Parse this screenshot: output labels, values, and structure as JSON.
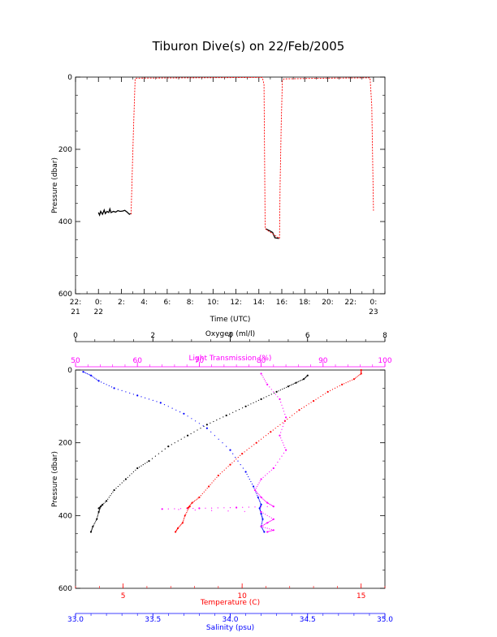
{
  "title": "Tiburon Dive(s) on 22/Feb/2005",
  "colors": {
    "black": "#000000",
    "red": "#ff0000",
    "blue": "#0000ff",
    "magenta": "#ff00ff"
  },
  "chart_data": [
    {
      "type": "line",
      "title": "Tiburon Dive(s) on 22/Feb/2005",
      "xlabel": "Time (UTC)",
      "ylabel": "Pressure (dbar)",
      "x_unit": "hours since 22/Feb 00:00 UTC",
      "xlim": [
        -2,
        25
      ],
      "ylim": [
        600,
        0
      ],
      "x_ticks": [
        {
          "x": -2,
          "label": "22:",
          "sub": "21"
        },
        {
          "x": 0,
          "label": "0:",
          "sub": "22"
        },
        {
          "x": 2,
          "label": "2:",
          "sub": ""
        },
        {
          "x": 4,
          "label": "4:",
          "sub": ""
        },
        {
          "x": 6,
          "label": "6:",
          "sub": ""
        },
        {
          "x": 8,
          "label": "8:",
          "sub": ""
        },
        {
          "x": 10,
          "label": "10:",
          "sub": ""
        },
        {
          "x": 12,
          "label": "12:",
          "sub": ""
        },
        {
          "x": 14,
          "label": "14:",
          "sub": ""
        },
        {
          "x": 16,
          "label": "16:",
          "sub": ""
        },
        {
          "x": 18,
          "label": "18:",
          "sub": ""
        },
        {
          "x": 20,
          "label": "20:",
          "sub": ""
        },
        {
          "x": 22,
          "label": "22:",
          "sub": ""
        },
        {
          "x": 24,
          "label": "0:",
          "sub": "23"
        }
      ],
      "y_ticks": [
        0,
        200,
        400,
        600
      ],
      "series": [
        {
          "color": "#000000",
          "points": [
            [
              0.0,
              375
            ],
            [
              0.1,
              382
            ],
            [
              0.2,
              372
            ],
            [
              0.35,
              380
            ],
            [
              0.5,
              368
            ],
            [
              0.6,
              378
            ],
            [
              0.75,
              372
            ],
            [
              0.9,
              375
            ],
            [
              1.0,
              365
            ],
            [
              1.1,
              375
            ],
            [
              1.3,
              372
            ],
            [
              1.5,
              374
            ],
            [
              1.7,
              370
            ],
            [
              1.9,
              372
            ],
            [
              2.1,
              371
            ],
            [
              2.3,
              369
            ],
            [
              2.5,
              374
            ],
            [
              2.7,
              380
            ],
            [
              2.8,
              378
            ]
          ]
        },
        {
          "color": "#000000",
          "points": [
            [
              14.6,
              420
            ],
            [
              14.9,
              425
            ],
            [
              15.2,
              430
            ],
            [
              15.4,
              445
            ],
            [
              15.6,
              446
            ],
            [
              15.75,
              447
            ]
          ]
        },
        {
          "color": "#ff0000",
          "points": [
            [
              2.85,
              380
            ],
            [
              2.95,
              260
            ],
            [
              3.05,
              150
            ],
            [
              3.2,
              5
            ],
            [
              3.3,
              3
            ],
            [
              8,
              2
            ],
            [
              14.3,
              1
            ],
            [
              14.45,
              20
            ],
            [
              14.55,
              420
            ],
            [
              15.8,
              447
            ],
            [
              15.85,
              300
            ],
            [
              15.95,
              130
            ],
            [
              16.05,
              10
            ],
            [
              16.2,
              5
            ],
            [
              20,
              3
            ],
            [
              23.7,
              2
            ],
            [
              23.85,
              80
            ],
            [
              24.0,
              370
            ]
          ]
        }
      ]
    },
    {
      "type": "scatter",
      "ylabel": "Pressure (dbar)",
      "ylim": [
        600,
        0
      ],
      "y_ticks": [
        0,
        200,
        400,
        600
      ],
      "axes": [
        {
          "name": "oxygen",
          "label": "Oxygen (ml/l)",
          "color": "#000000",
          "range": [
            0,
            8
          ],
          "ticks": [
            0,
            2,
            4,
            6,
            8
          ]
        },
        {
          "name": "light",
          "label": "Light Transmission (%)",
          "color": "#ff00ff",
          "range": [
            50,
            100
          ],
          "ticks": [
            50,
            60,
            70,
            80,
            90,
            100
          ]
        },
        {
          "name": "temperature",
          "label": "Temperature (C)",
          "color": "#ff0000",
          "range": [
            3,
            16
          ],
          "ticks": [
            5,
            10,
            15
          ]
        },
        {
          "name": "salinity",
          "label": "Salinity (psu)",
          "color": "#0000ff",
          "range": [
            33.0,
            35.0
          ],
          "ticks": [
            "33.0",
            "33.5",
            "34.0",
            "34.5",
            "35.0"
          ]
        }
      ],
      "series": [
        {
          "axis": "oxygen",
          "color": "#000000",
          "points": [
            [
              0.4,
              445
            ],
            [
              0.45,
              430
            ],
            [
              0.55,
              410
            ],
            [
              0.6,
              390
            ],
            [
              0.65,
              375
            ],
            [
              0.7,
              370
            ],
            [
              0.6,
              380
            ],
            [
              0.8,
              360
            ],
            [
              1.0,
              330
            ],
            [
              1.3,
              300
            ],
            [
              1.6,
              270
            ],
            [
              1.9,
              250
            ],
            [
              2.4,
              210
            ],
            [
              2.9,
              180
            ],
            [
              3.4,
              150
            ],
            [
              3.9,
              125
            ],
            [
              4.4,
              100
            ],
            [
              4.8,
              80
            ],
            [
              5.2,
              60
            ],
            [
              5.5,
              45
            ],
            [
              5.7,
              35
            ],
            [
              5.9,
              25
            ],
            [
              6.0,
              15
            ]
          ]
        },
        {
          "axis": "temperature",
          "color": "#ff0000",
          "points": [
            [
              7.2,
              445
            ],
            [
              7.3,
              435
            ],
            [
              7.5,
              420
            ],
            [
              7.6,
              400
            ],
            [
              7.8,
              375
            ],
            [
              7.7,
              380
            ],
            [
              7.9,
              365
            ],
            [
              8.2,
              350
            ],
            [
              8.6,
              320
            ],
            [
              9.0,
              290
            ],
            [
              9.5,
              260
            ],
            [
              10.0,
              230
            ],
            [
              10.6,
              200
            ],
            [
              11.2,
              170
            ],
            [
              11.8,
              140
            ],
            [
              12.4,
              110
            ],
            [
              13.0,
              85
            ],
            [
              13.6,
              60
            ],
            [
              14.2,
              40
            ],
            [
              14.7,
              25
            ],
            [
              15.0,
              10
            ],
            [
              15.0,
              0
            ]
          ]
        },
        {
          "axis": "salinity",
          "color": "#0000ff",
          "points": [
            [
              33.05,
              5
            ],
            [
              33.1,
              15
            ],
            [
              33.15,
              30
            ],
            [
              33.25,
              50
            ],
            [
              33.4,
              70
            ],
            [
              33.55,
              90
            ],
            [
              33.7,
              120
            ],
            [
              33.85,
              160
            ],
            [
              34.0,
              220
            ],
            [
              34.1,
              280
            ],
            [
              34.15,
              320
            ],
            [
              34.18,
              350
            ],
            [
              34.2,
              370
            ],
            [
              34.19,
              380
            ],
            [
              34.2,
              395
            ],
            [
              34.21,
              410
            ],
            [
              34.2,
              430
            ],
            [
              34.22,
              445
            ]
          ]
        },
        {
          "axis": "light",
          "color": "#ff00ff",
          "points": [
            [
              80,
              10
            ],
            [
              81,
              40
            ],
            [
              83,
              80
            ],
            [
              84,
              130
            ],
            [
              83,
              180
            ],
            [
              84,
              220
            ],
            [
              82,
              270
            ],
            [
              80,
              300
            ],
            [
              79,
              330
            ],
            [
              80,
              350
            ],
            [
              81,
              365
            ],
            [
              82,
              375
            ],
            [
              76,
              378
            ],
            [
              70,
              380
            ],
            [
              64,
              382
            ],
            [
              80,
              390
            ],
            [
              82,
              410
            ],
            [
              81,
              420
            ],
            [
              80,
              430
            ],
            [
              82,
              440
            ],
            [
              81,
              445
            ]
          ]
        }
      ]
    }
  ]
}
